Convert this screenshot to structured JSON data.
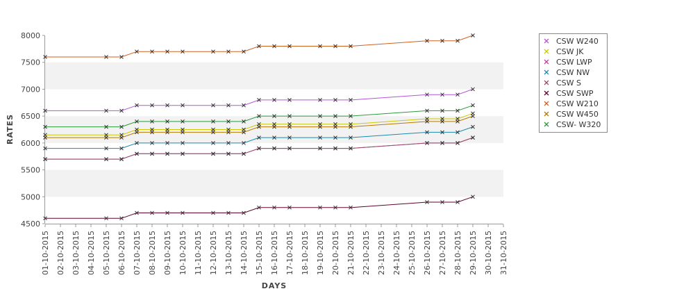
{
  "chart_data": {
    "type": "line",
    "xlabel": "DAYS",
    "ylabel": "RATES",
    "ylim": [
      4500,
      8000
    ],
    "y_ticks": [
      4500,
      5000,
      5500,
      6000,
      6500,
      7000,
      7500,
      8000
    ],
    "grid": "alternating horizontal bands",
    "legend_position": "right",
    "categories": [
      "01-10-2015",
      "02-10-2015",
      "03-10-2015",
      "04-10-2015",
      "05-10-2015",
      "06-10-2015",
      "07-10-2015",
      "08-10-2015",
      "09-10-2015",
      "10-10-2015",
      "11-10-2015",
      "12-10-2015",
      "13-10-2015",
      "14-10-2015",
      "15-10-2015",
      "16-10-2015",
      "17-10-2015",
      "18-10-2015",
      "19-10-2015",
      "20-10-2015",
      "21-10-2015",
      "22-10-2015",
      "23-10-2015",
      "24-10-2015",
      "25-10-2015",
      "26-10-2015",
      "27-10-2015",
      "28-10-2015",
      "29-10-2015",
      "30-10-2015",
      "31-10-2015"
    ],
    "x": [
      "01-10-2015",
      "05-10-2015",
      "06-10-2015",
      "07-10-2015",
      "08-10-2015",
      "09-10-2015",
      "10-10-2015",
      "12-10-2015",
      "13-10-2015",
      "14-10-2015",
      "15-10-2015",
      "16-10-2015",
      "17-10-2015",
      "19-10-2015",
      "20-10-2015",
      "21-10-2015",
      "26-10-2015",
      "27-10-2015",
      "28-10-2015",
      "29-10-2015"
    ],
    "series": [
      {
        "name": "CSW  W240",
        "color": "#b455d8",
        "values": [
          6600,
          6600,
          6600,
          6700,
          6700,
          6700,
          6700,
          6700,
          6700,
          6700,
          6800,
          6800,
          6800,
          6800,
          6800,
          6800,
          6900,
          6900,
          6900,
          7000
        ]
      },
      {
        "name": "CSW JK",
        "color": "#c8c800",
        "values": [
          6150,
          6150,
          6150,
          6250,
          6250,
          6250,
          6250,
          6250,
          6250,
          6250,
          6350,
          6350,
          6350,
          6350,
          6350,
          6350,
          6450,
          6450,
          6450,
          6550
        ]
      },
      {
        "name": "CSW LWP",
        "color": "#c040a0",
        "values": [
          5700,
          5700,
          5700,
          5800,
          5800,
          5800,
          5800,
          5800,
          5800,
          5800,
          5900,
          5900,
          5900,
          5900,
          5900,
          5900,
          6000,
          6000,
          6000,
          6100
        ]
      },
      {
        "name": "CSW NW",
        "color": "#1a8ab0",
        "values": [
          5900,
          5900,
          5900,
          6000,
          6000,
          6000,
          6000,
          6000,
          6000,
          6000,
          6100,
          6100,
          6100,
          6100,
          6100,
          6100,
          6200,
          6200,
          6200,
          6300
        ]
      },
      {
        "name": "CSW S",
        "color": "#9a4a6a",
        "values": [
          5700,
          5700,
          5700,
          5800,
          5800,
          5800,
          5800,
          5800,
          5800,
          5800,
          5900,
          5900,
          5900,
          5900,
          5900,
          5900,
          6000,
          6000,
          6000,
          6100
        ]
      },
      {
        "name": "CSW SWP",
        "color": "#600030",
        "values": [
          4600,
          4600,
          4600,
          4700,
          4700,
          4700,
          4700,
          4700,
          4700,
          4700,
          4800,
          4800,
          4800,
          4800,
          4800,
          4800,
          4900,
          4900,
          4900,
          5000
        ]
      },
      {
        "name": "CSW W210",
        "color": "#d2601e",
        "values": [
          7600,
          7600,
          7600,
          7700,
          7700,
          7700,
          7700,
          7700,
          7700,
          7700,
          7800,
          7800,
          7800,
          7800,
          7800,
          7800,
          7900,
          7900,
          7900,
          8000
        ]
      },
      {
        "name": "CSW W450",
        "color": "#b87800",
        "values": [
          6100,
          6100,
          6100,
          6200,
          6200,
          6200,
          6200,
          6200,
          6200,
          6200,
          6300,
          6300,
          6300,
          6300,
          6300,
          6300,
          6400,
          6400,
          6400,
          6500
        ]
      },
      {
        "name": "CSW- W320",
        "color": "#2a9a3a",
        "values": [
          6300,
          6300,
          6300,
          6400,
          6400,
          6400,
          6400,
          6400,
          6400,
          6400,
          6500,
          6500,
          6500,
          6500,
          6500,
          6500,
          6600,
          6600,
          6600,
          6700
        ]
      }
    ]
  }
}
